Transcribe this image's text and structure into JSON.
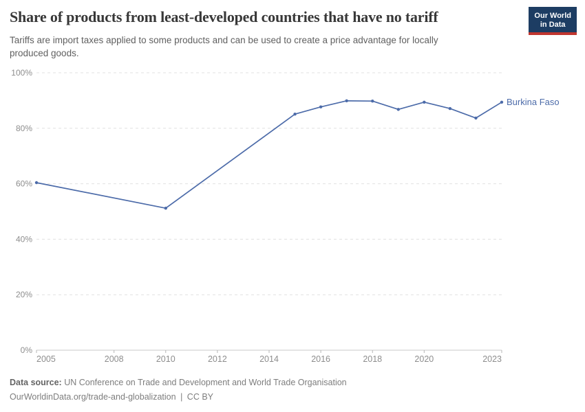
{
  "header": {
    "title": "Share of products from least-developed countries that have no tariff",
    "subtitle_lines": [
      "Tariffs are import taxes applied to some products and can be used to create a price advantage for locally",
      "produced goods."
    ],
    "logo": {
      "line1": "Our World",
      "line2": "in Data",
      "bg_color": "#1d3d63",
      "accent_color": "#c0362f"
    }
  },
  "chart_data": {
    "type": "line",
    "title": "Share of products from least-developed countries that have no tariff",
    "unit": "%",
    "xlim": [
      2005,
      2023
    ],
    "ylim": [
      0,
      100
    ],
    "x_ticks": [
      2005,
      2008,
      2010,
      2012,
      2014,
      2016,
      2018,
      2020,
      2023
    ],
    "y_ticks": [
      0,
      20,
      40,
      60,
      80,
      100
    ],
    "grid": "horizontal-dashed",
    "legend_position": "end-of-line-label",
    "grid_color": "#e0e0e0",
    "axis_color": "#c9c9c9",
    "tick_color": "#b5b5b5",
    "tick_label_color": "#8d8d8d",
    "series": [
      {
        "name": "Burkina Faso",
        "color": "#4c6ba9",
        "points": [
          [
            2005,
            60.4
          ],
          [
            2010,
            51.2
          ],
          [
            2015,
            85.1
          ],
          [
            2016,
            87.7
          ],
          [
            2017,
            89.9
          ],
          [
            2018,
            89.8
          ],
          [
            2019,
            86.8
          ],
          [
            2020,
            89.4
          ],
          [
            2021,
            87.1
          ],
          [
            2022,
            83.7
          ],
          [
            2023,
            89.4
          ]
        ]
      }
    ]
  },
  "footer": {
    "data_source_label": "Data source:",
    "data_source_text": "UN Conference on Trade and Development and World Trade Organisation",
    "url": "OurWorldinData.org/trade-and-globalization",
    "separator": "|",
    "license": "CC BY"
  }
}
